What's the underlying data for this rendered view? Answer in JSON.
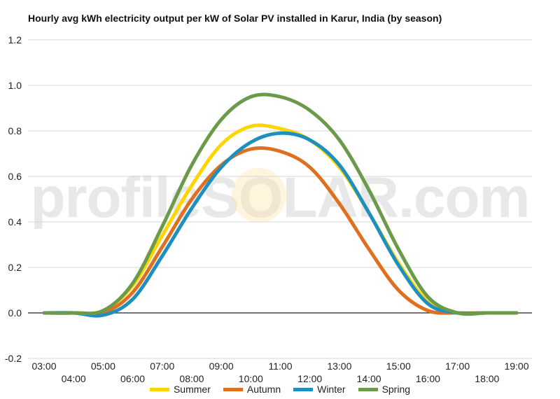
{
  "chart_data": {
    "type": "line",
    "title": "Hourly avg kWh electricity output per kW of Solar PV installed in Karur, India (by season)",
    "xlabel": "",
    "ylabel": "",
    "categories": [
      "03:00",
      "04:00",
      "05:00",
      "06:00",
      "07:00",
      "08:00",
      "09:00",
      "10:00",
      "11:00",
      "12:00",
      "13:00",
      "14:00",
      "15:00",
      "16:00",
      "17:00",
      "18:00",
      "19:00"
    ],
    "y_ticks": [
      "-0.2",
      "0.0",
      "0.2",
      "0.4",
      "0.6",
      "0.8",
      "1.0",
      "1.2"
    ],
    "ylim": [
      -0.2,
      1.2
    ],
    "grid": true,
    "legend_position": "bottom",
    "series": [
      {
        "name": "Summer",
        "color": "#FFD500",
        "values": [
          0.0,
          0.0,
          0.01,
          0.12,
          0.34,
          0.56,
          0.74,
          0.82,
          0.81,
          0.76,
          0.64,
          0.44,
          0.22,
          0.05,
          0.0,
          0.0,
          0.0
        ]
      },
      {
        "name": "Autumn",
        "color": "#E07020",
        "values": [
          0.0,
          0.0,
          0.0,
          0.09,
          0.29,
          0.5,
          0.65,
          0.72,
          0.71,
          0.64,
          0.48,
          0.28,
          0.1,
          0.01,
          0.0,
          0.0,
          0.0
        ]
      },
      {
        "name": "Winter",
        "color": "#1E90C0",
        "values": [
          0.0,
          0.0,
          -0.01,
          0.06,
          0.25,
          0.46,
          0.64,
          0.75,
          0.79,
          0.76,
          0.65,
          0.44,
          0.21,
          0.04,
          0.0,
          0.0,
          0.0
        ]
      },
      {
        "name": "Spring",
        "color": "#6A9A4A",
        "values": [
          0.0,
          0.0,
          0.01,
          0.13,
          0.38,
          0.65,
          0.85,
          0.95,
          0.95,
          0.89,
          0.76,
          0.54,
          0.28,
          0.07,
          0.0,
          0.0,
          0.0
        ]
      }
    ]
  },
  "watermark": {
    "text": "profileSOLAR.com"
  }
}
